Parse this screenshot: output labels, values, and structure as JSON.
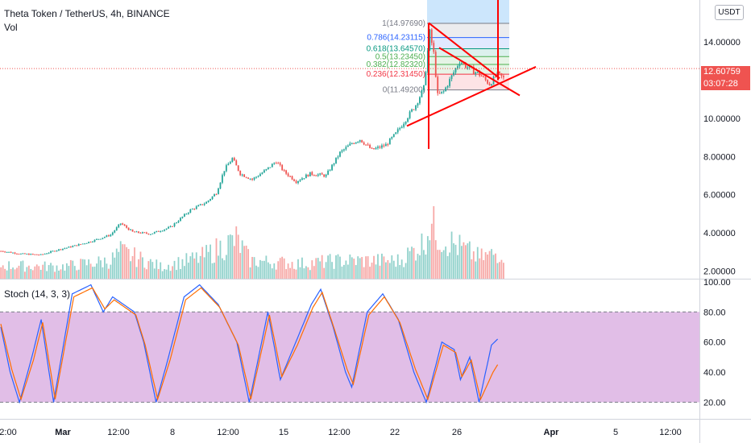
{
  "header": {
    "title": "Theta Token / TetherUS, 4h, BINANCE",
    "volume_label": "Vol",
    "currency": "USDT",
    "top_axis_partial": "1"
  },
  "price_tag": {
    "price": "12.60759",
    "countdown": "03:07:28",
    "color": "#ef5350"
  },
  "colors": {
    "up": "#26a69a",
    "down": "#ef5350",
    "drawing": "#ff0000",
    "stoch_k": "#2962ff",
    "stoch_d": "#ff6d00",
    "stoch_band": "#e1bee7"
  },
  "chart_data": [
    {
      "type": "candlestick",
      "title": "Theta Token / TetherUS, 4h, BINANCE",
      "ylim": [
        1.6,
        16.2
      ],
      "y_ticks": [
        "14.00000",
        "12.00000",
        "10.00000",
        "8.00000",
        "6.00000",
        "4.00000",
        "2.00000"
      ],
      "y_tick_values": [
        14,
        12,
        10,
        8,
        6,
        4,
        2
      ],
      "x_ticks": [
        "2:00",
        "Mar",
        "12:00",
        "8",
        "12:00",
        "15",
        "12:00",
        "22",
        "26",
        "Apr",
        "5",
        "12:00"
      ],
      "keypoints": [
        [
          0,
          3.05
        ],
        [
          10,
          2.9
        ],
        [
          20,
          2.85
        ],
        [
          28,
          3.1
        ],
        [
          36,
          3.3
        ],
        [
          45,
          3.55
        ],
        [
          55,
          3.9
        ],
        [
          60,
          4.5
        ],
        [
          66,
          4.05
        ],
        [
          75,
          3.95
        ],
        [
          85,
          4.3
        ],
        [
          95,
          5.2
        ],
        [
          103,
          5.6
        ],
        [
          108,
          6.1
        ],
        [
          112,
          7.3
        ],
        [
          116,
          7.9
        ],
        [
          120,
          7.1
        ],
        [
          126,
          6.8
        ],
        [
          133,
          7.3
        ],
        [
          138,
          7.75
        ],
        [
          142,
          7.2
        ],
        [
          148,
          6.7
        ],
        [
          155,
          7.1
        ],
        [
          163,
          7.0
        ],
        [
          170,
          8.2
        ],
        [
          176,
          8.7
        ],
        [
          180,
          8.9
        ],
        [
          186,
          8.35
        ],
        [
          193,
          8.6
        ],
        [
          198,
          9.2
        ],
        [
          203,
          9.95
        ],
        [
          208,
          10.7
        ],
        [
          212,
          11.6
        ],
        [
          215,
          14.5
        ],
        [
          217,
          13.4
        ],
        [
          219,
          11.2
        ],
        [
          222,
          11.4
        ],
        [
          226,
          12.2
        ],
        [
          230,
          13.0
        ],
        [
          235,
          12.6
        ],
        [
          240,
          12.3
        ],
        [
          245,
          11.8
        ],
        [
          249,
          12.3
        ],
        [
          252,
          12.1
        ]
      ],
      "n_candles": 253,
      "fibonacci_levels": [
        {
          "ratio": "1",
          "price": 14.9769,
          "label": "1(14.97690)",
          "color": "#787b86"
        },
        {
          "ratio": "0.786",
          "price": 14.23115,
          "label": "0.786(14.23115)",
          "color": "#2962ff"
        },
        {
          "ratio": "0.618",
          "price": 13.6457,
          "label": "0.618(13.64570)",
          "color": "#089981"
        },
        {
          "ratio": "0.5",
          "price": 13.2345,
          "label": "0.5(13.23450)",
          "color": "#4caf50"
        },
        {
          "ratio": "0.382",
          "price": 12.8232,
          "label": "0.382(12.82320)",
          "color": "#4caf50"
        },
        {
          "ratio": "0.236",
          "price": 12.3145,
          "label": "0.236(12.31450)",
          "color": "#f23645"
        },
        {
          "ratio": "0",
          "price": 11.492,
          "label": "0(11.49200)",
          "color": "#787b86"
        }
      ]
    },
    {
      "type": "bar",
      "name": "Vol",
      "keypoints": [
        [
          0,
          0.22
        ],
        [
          30,
          0.2
        ],
        [
          55,
          0.3
        ],
        [
          60,
          0.45
        ],
        [
          80,
          0.2
        ],
        [
          100,
          0.35
        ],
        [
          112,
          0.55
        ],
        [
          118,
          0.65
        ],
        [
          125,
          0.3
        ],
        [
          150,
          0.25
        ],
        [
          170,
          0.3
        ],
        [
          200,
          0.3
        ],
        [
          212,
          0.6
        ],
        [
          215,
          0.95
        ],
        [
          220,
          0.7
        ],
        [
          240,
          0.35
        ],
        [
          252,
          0.45
        ]
      ]
    },
    {
      "type": "line",
      "title": "Stoch (14, 3, 3)",
      "ylim": [
        9,
        101
      ],
      "y_ticks": [
        "100.00",
        "80.00",
        "60.00",
        "40.00",
        "20.00"
      ],
      "y_tick_values": [
        100,
        80,
        60,
        40,
        20
      ],
      "band": [
        20,
        80
      ],
      "series": [
        {
          "name": "%K",
          "keypoints": [
            [
              0,
              70
            ],
            [
              6,
              40
            ],
            [
              12,
              20
            ],
            [
              20,
              50
            ],
            [
              26,
              75
            ],
            [
              34,
              20
            ],
            [
              46,
              92
            ],
            [
              58,
              98
            ],
            [
              66,
              80
            ],
            [
              72,
              90
            ],
            [
              86,
              80
            ],
            [
              92,
              60
            ],
            [
              100,
              20
            ],
            [
              108,
              50
            ],
            [
              118,
              90
            ],
            [
              128,
              98
            ],
            [
              140,
              85
            ],
            [
              152,
              60
            ],
            [
              160,
              20
            ],
            [
              172,
              80
            ],
            [
              180,
              35
            ],
            [
              190,
              60
            ],
            [
              200,
              85
            ],
            [
              206,
              95
            ],
            [
              214,
              70
            ],
            [
              222,
              40
            ],
            [
              226,
              30
            ],
            [
              236,
              80
            ],
            [
              246,
              92
            ],
            [
              256,
              75
            ],
            [
              266,
              40
            ],
            [
              274,
              20
            ],
            [
              284,
              60
            ],
            [
              292,
              55
            ],
            [
              296,
              35
            ],
            [
              302,
              50
            ],
            [
              308,
              20
            ],
            [
              316,
              58
            ],
            [
              320,
              62
            ]
          ]
        },
        {
          "name": "%D",
          "keypoints": [
            [
              0,
              72
            ],
            [
              7,
              42
            ],
            [
              13,
              22
            ],
            [
              21,
              48
            ],
            [
              27,
              73
            ],
            [
              35,
              22
            ],
            [
              47,
              90
            ],
            [
              59,
              96
            ],
            [
              67,
              82
            ],
            [
              73,
              88
            ],
            [
              87,
              78
            ],
            [
              93,
              58
            ],
            [
              101,
              22
            ],
            [
              109,
              48
            ],
            [
              119,
              88
            ],
            [
              129,
              96
            ],
            [
              141,
              83
            ],
            [
              153,
              58
            ],
            [
              161,
              22
            ],
            [
              173,
              78
            ],
            [
              181,
              37
            ],
            [
              191,
              58
            ],
            [
              201,
              83
            ],
            [
              207,
              93
            ],
            [
              215,
              68
            ],
            [
              223,
              42
            ],
            [
              227,
              32
            ],
            [
              237,
              78
            ],
            [
              247,
              90
            ],
            [
              257,
              73
            ],
            [
              267,
              42
            ],
            [
              275,
              22
            ],
            [
              285,
              58
            ],
            [
              293,
              53
            ],
            [
              297,
              37
            ],
            [
              303,
              48
            ],
            [
              309,
              22
            ],
            [
              317,
              40
            ],
            [
              320,
              45
            ]
          ]
        }
      ]
    }
  ]
}
